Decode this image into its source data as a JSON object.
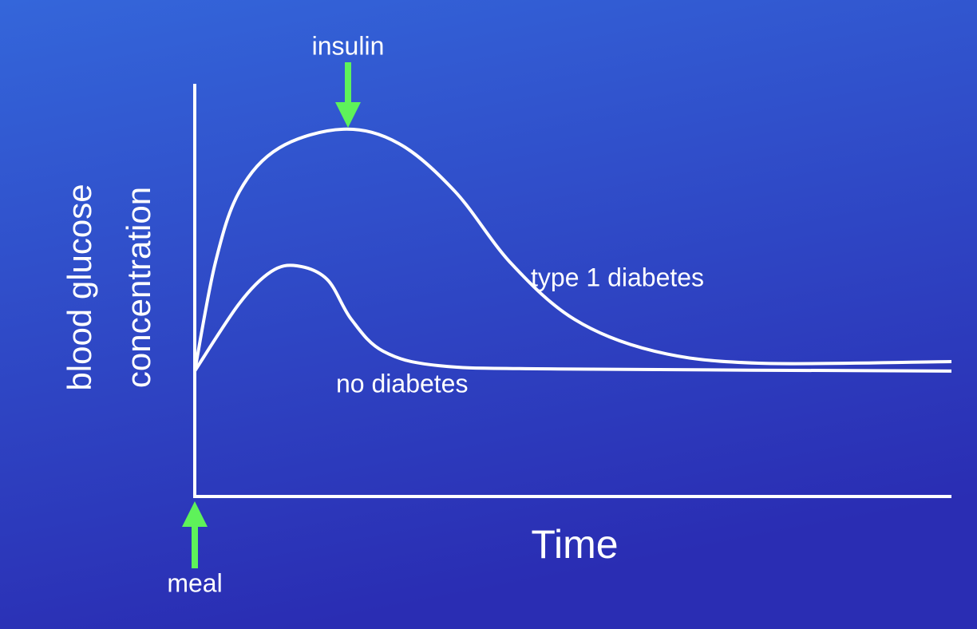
{
  "chart_data": {
    "type": "line",
    "xlabel": "Time",
    "ylabel": [
      "blood glucose",
      "concentration"
    ],
    "xlim": [
      0,
      100
    ],
    "ylim": [
      0,
      100
    ],
    "series": [
      {
        "name": "type 1 diabetes",
        "color": "#ffffff",
        "x": [
          0,
          2.7,
          5.9,
          11.2,
          19.6,
          27.0,
          34.4,
          41.8,
          50.2,
          60.8,
          74.5,
          100
        ],
        "values": [
          30.4,
          56.5,
          73.9,
          84.5,
          89.0,
          85.5,
          73.9,
          56.5,
          42.9,
          35.2,
          32.3,
          32.7
        ]
      },
      {
        "name": "no diabetes",
        "color": "#ffffff",
        "x": [
          0,
          5.9,
          10.1,
          13.5,
          17.5,
          20.7,
          24.9,
          32.3,
          48.1,
          100
        ],
        "values": [
          30.4,
          46.8,
          54.5,
          55.9,
          52.6,
          42.9,
          35.2,
          31.7,
          30.9,
          30.4
        ]
      }
    ],
    "annotations": [
      "insulin",
      "meal"
    ],
    "annotation_color": "#5ef25a"
  }
}
